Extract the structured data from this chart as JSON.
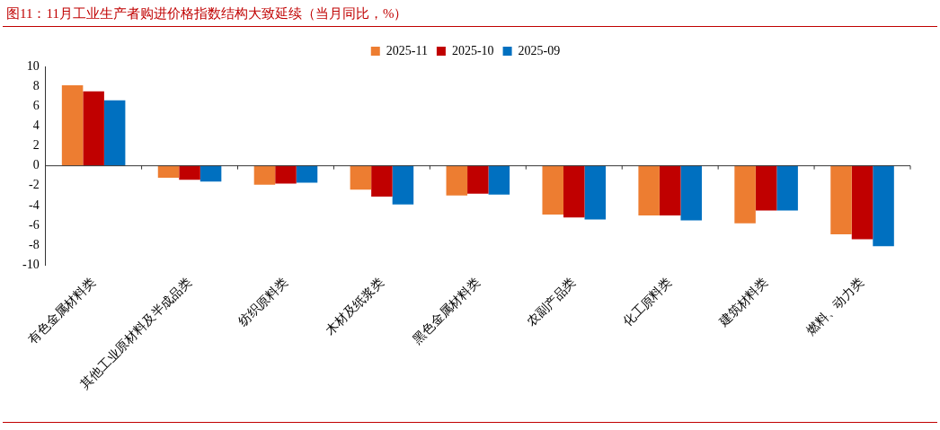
{
  "chart_data": {
    "type": "bar",
    "title": "图11：11月工业生产者购进价格指数结构大致延续（当月同比，%）",
    "categories": [
      "有色金属材料类",
      "其他工业原材料及半成品类",
      "纺织原料类",
      "木材及纸浆类",
      "黑色金属材料类",
      "农副产品类",
      "化工原料类",
      "建筑材料类",
      "燃料、动力类"
    ],
    "series": [
      {
        "name": "2025-11",
        "color": "#ed7d31",
        "values": [
          8.1,
          -1.2,
          -1.9,
          -2.4,
          -3.0,
          -4.9,
          -5.0,
          -5.8,
          -6.9
        ]
      },
      {
        "name": "2025-10",
        "color": "#c00000",
        "values": [
          7.5,
          -1.4,
          -1.8,
          -3.1,
          -2.8,
          -5.2,
          -5.0,
          -4.5,
          -7.4
        ]
      },
      {
        "name": "2025-09",
        "color": "#0070c0",
        "values": [
          6.6,
          -1.6,
          -1.7,
          -3.9,
          -2.9,
          -5.4,
          -5.5,
          -4.5,
          -8.1
        ]
      }
    ],
    "ylim": [
      -10,
      10
    ],
    "yticks": [
      -10,
      -8,
      -6,
      -4,
      -2,
      0,
      2,
      4,
      6,
      8,
      10
    ],
    "legend": "top"
  }
}
